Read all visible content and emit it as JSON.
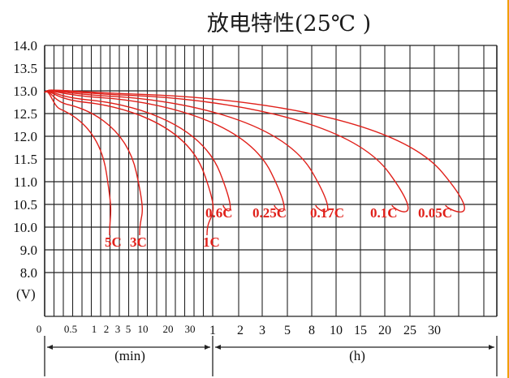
{
  "chart_data": {
    "type": "line",
    "title": "放电特性(25℃ )",
    "ylabel": "(V)",
    "ylim": [
      8.0,
      14.0
    ],
    "y_ticks": [
      "14.0",
      "13.5",
      "13.0",
      "12.5",
      "12.0",
      "11.5",
      "11.0",
      "10.5",
      "10.0",
      "9.0",
      "8.0"
    ],
    "x_segments": [
      {
        "unit": "(min)",
        "ticks": [
          "0",
          "0.5",
          "1",
          "2",
          "3",
          "5",
          "10",
          "20",
          "30"
        ]
      },
      {
        "unit": "(h)",
        "ticks": [
          "1",
          "2",
          "3",
          "5",
          "8",
          "10",
          "15",
          "20",
          "25",
          "30"
        ]
      }
    ],
    "grid": true,
    "line_color": "#e0201a",
    "series": [
      {
        "name": "5C",
        "end_voltage": 9.6,
        "end_time": "2 min"
      },
      {
        "name": "3C",
        "end_voltage": 9.6,
        "end_time": "5 min"
      },
      {
        "name": "1C",
        "end_voltage": 9.6,
        "end_time": "1 h"
      },
      {
        "name": "0.6C",
        "end_voltage": 10.2,
        "end_time": "1 h"
      },
      {
        "name": "0.25C",
        "end_voltage": 10.2,
        "end_time": "3 h"
      },
      {
        "name": "0.17C",
        "end_voltage": 10.2,
        "end_time": "5 h"
      },
      {
        "name": "0.1C",
        "end_voltage": 10.2,
        "end_time": "10 h"
      },
      {
        "name": "0.05C",
        "end_voltage": 10.2,
        "end_time": "20 h"
      }
    ]
  }
}
